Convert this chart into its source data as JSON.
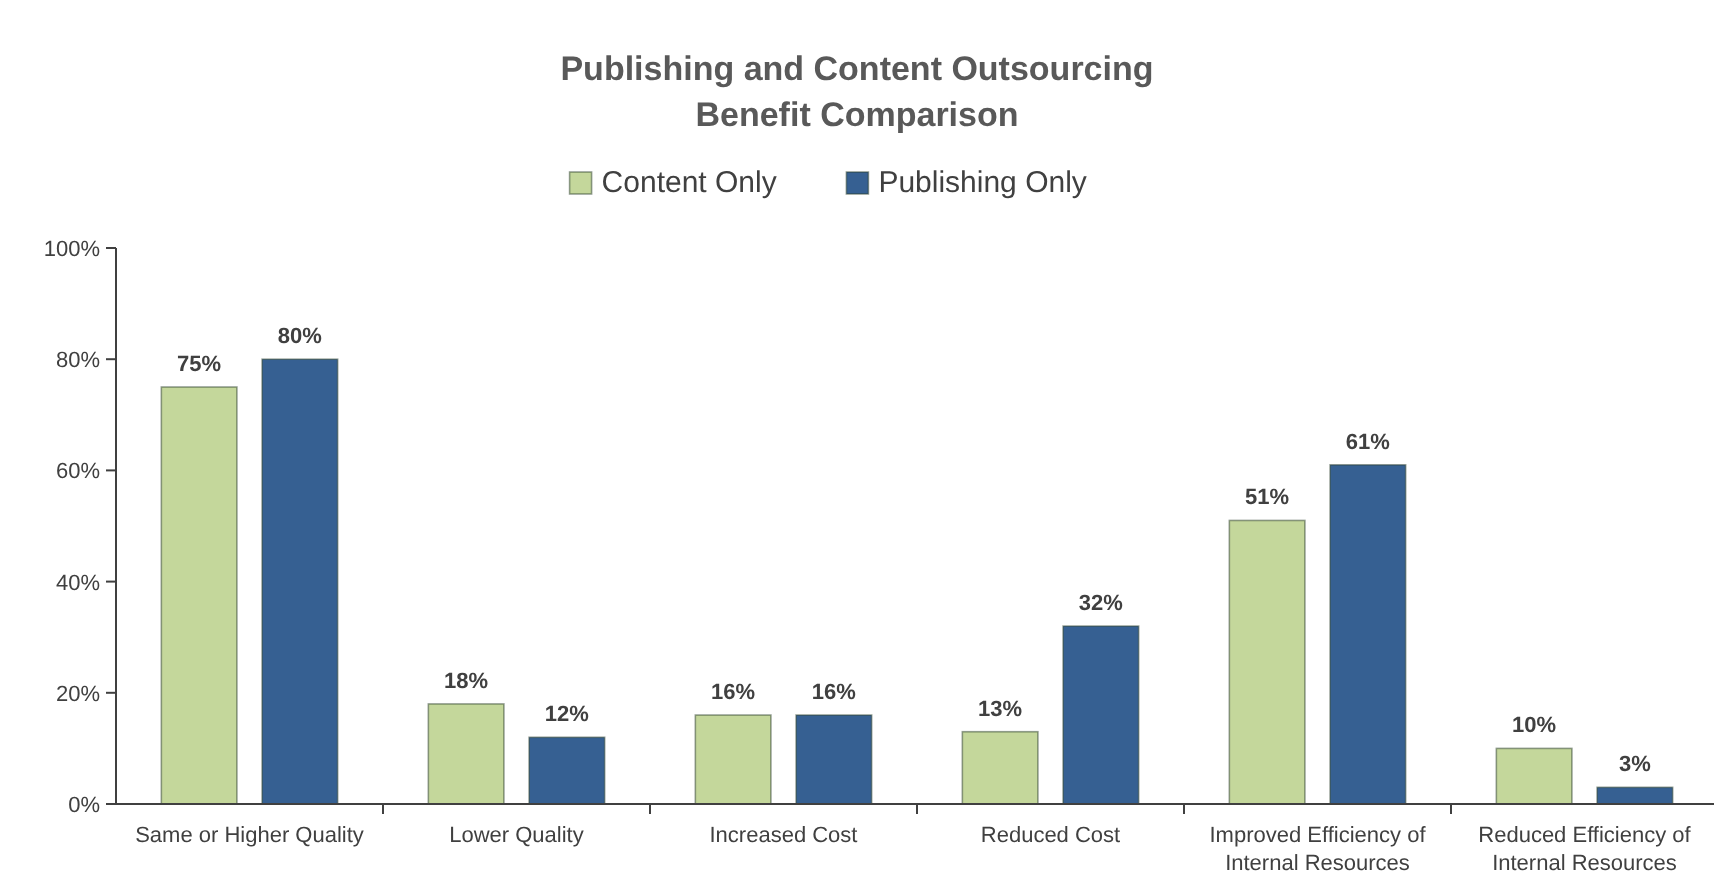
{
  "chart_data": {
    "type": "bar",
    "title": "Publishing and Content Outsourcing\nBenefit Comparison",
    "categories": [
      "Same or Higher Quality",
      "Lower Quality",
      "Increased Cost",
      "Reduced Cost",
      "Improved Efficiency of Internal Resources",
      "Reduced Efficiency of Internal Resources"
    ],
    "series": [
      {
        "name": "Content Only",
        "color": "#c4d79b",
        "values": [
          75,
          18,
          16,
          13,
          51,
          10
        ],
        "value_labels": [
          "75%",
          "18%",
          "16%",
          "13%",
          "51%",
          "10%"
        ]
      },
      {
        "name": "Publishing Only",
        "color": "#366092",
        "values": [
          80,
          12,
          16,
          32,
          61,
          3
        ],
        "value_labels": [
          "80%",
          "12%",
          "16%",
          "32%",
          "61%",
          "3%"
        ]
      }
    ],
    "ylim": [
      0,
      100
    ],
    "yticks": [
      {
        "value": 0,
        "label": "0%"
      },
      {
        "value": 20,
        "label": "20%"
      },
      {
        "value": 40,
        "label": "40%"
      },
      {
        "value": 60,
        "label": "60%"
      },
      {
        "value": 80,
        "label": "80%"
      },
      {
        "value": 100,
        "label": "100%"
      }
    ],
    "grid": false,
    "legend": "top"
  }
}
